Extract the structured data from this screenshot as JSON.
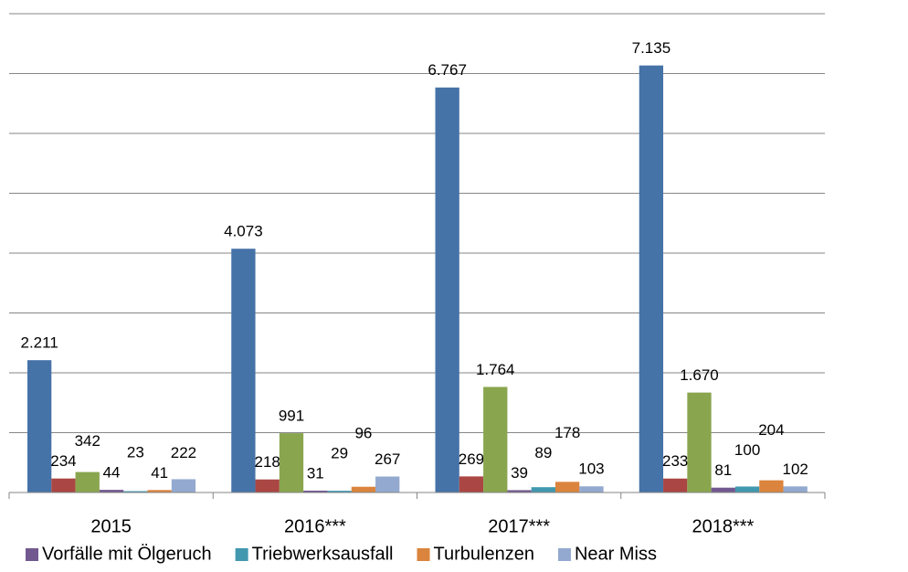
{
  "chart_data": {
    "type": "bar",
    "categories": [
      "2015",
      "2016***",
      "2017***",
      "2018***"
    ],
    "series": [
      {
        "color": "#4572a7",
        "values": [
          2211,
          4073,
          6767,
          7135
        ],
        "value_labels": [
          "2.211",
          "4.073",
          "6.767",
          "7.135"
        ]
      },
      {
        "color": "#aa4643",
        "values": [
          234,
          218,
          269,
          233
        ]
      },
      {
        "color": "#89a54e",
        "values": [
          342,
          991,
          1764,
          1670
        ],
        "value_labels": [
          "342",
          "991",
          "1.764",
          "1.670"
        ]
      },
      {
        "name": "Vorfälle mit Ölgeruch",
        "color": "#71588f",
        "values": [
          44,
          31,
          39,
          81
        ]
      },
      {
        "name": "Triebwerksausfall",
        "color": "#4198af",
        "values": [
          23,
          29,
          89,
          100
        ]
      },
      {
        "name": "Turbulenzen",
        "color": "#db843d",
        "values": [
          41,
          96,
          178,
          204
        ]
      },
      {
        "name": "Near Miss",
        "color": "#93a9cf",
        "values": [
          222,
          267,
          103,
          102
        ]
      }
    ],
    "ylim": [
      0,
      8000
    ],
    "yticks": [
      0,
      1000,
      2000,
      3000,
      4000,
      5000,
      6000,
      7000,
      8000
    ],
    "show_ytick_labels": false,
    "grid": true,
    "legend": "bottom"
  }
}
